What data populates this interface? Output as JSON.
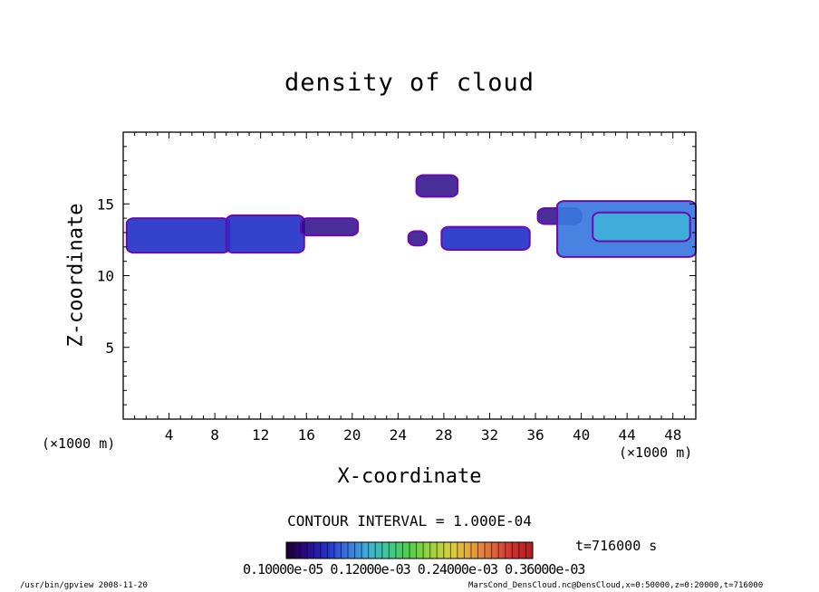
{
  "title": "density of cloud",
  "footer": {
    "left": "/usr/bin/gpview   2008-11-20",
    "right": "MarsCond_DensCloud.nc@DensCloud,x=0:50000,z=0:20000,t=716000"
  },
  "colorbar": {
    "contour_interval_label": "CONTOUR INTERVAL = 1.000E-04",
    "time_label": "t=716000 s",
    "tick_text": "0.10000e-05 0.12000e-03 0.24000e-03 0.36000e-03",
    "colors": [
      "#1a0033",
      "#2a0a8a",
      "#2432c8",
      "#3a78e0",
      "#40b0d8",
      "#3ec890",
      "#4fd04a",
      "#9ad23a",
      "#d8d040",
      "#e8a040",
      "#e06a3a",
      "#d03030",
      "#b02020"
    ]
  },
  "chart_data": {
    "type": "heatmap",
    "title": "density of cloud",
    "xlabel": "X-coordinate",
    "ylabel": "Z-coordinate",
    "x_unit_label": "(×1000 m)",
    "xlim": [
      0,
      50
    ],
    "ylim": [
      0,
      20
    ],
    "xticks": [
      4,
      8,
      12,
      16,
      20,
      24,
      28,
      32,
      36,
      40,
      44,
      48
    ],
    "yticks": [
      5,
      10,
      15
    ],
    "grid": false,
    "level_colors": [
      "#2a0a8a",
      "#2432c8",
      "#3a78e0",
      "#40b0d8",
      "#6a0ab0"
    ],
    "regions": [
      {
        "x": [
          0.3,
          9.3
        ],
        "z": [
          11.6,
          14.0
        ],
        "level": 1
      },
      {
        "x": [
          9.0,
          15.8
        ],
        "z": [
          11.6,
          14.2
        ],
        "level": 1
      },
      {
        "x": [
          15.5,
          20.5
        ],
        "z": [
          12.8,
          14.0
        ],
        "level": 0
      },
      {
        "x": [
          24.9,
          26.5
        ],
        "z": [
          12.1,
          13.1
        ],
        "level": 0
      },
      {
        "x": [
          25.6,
          29.2
        ],
        "z": [
          15.5,
          17.0
        ],
        "level": 0
      },
      {
        "x": [
          27.8,
          35.5
        ],
        "z": [
          11.8,
          13.4
        ],
        "level": 1
      },
      {
        "x": [
          36.2,
          40.0
        ],
        "z": [
          13.6,
          14.7
        ],
        "level": 0
      },
      {
        "x": [
          37.9,
          50.0
        ],
        "z": [
          11.3,
          15.2
        ],
        "level": 2
      },
      {
        "x": [
          41.0,
          49.5
        ],
        "z": [
          12.4,
          14.4
        ],
        "level": 3
      }
    ]
  }
}
